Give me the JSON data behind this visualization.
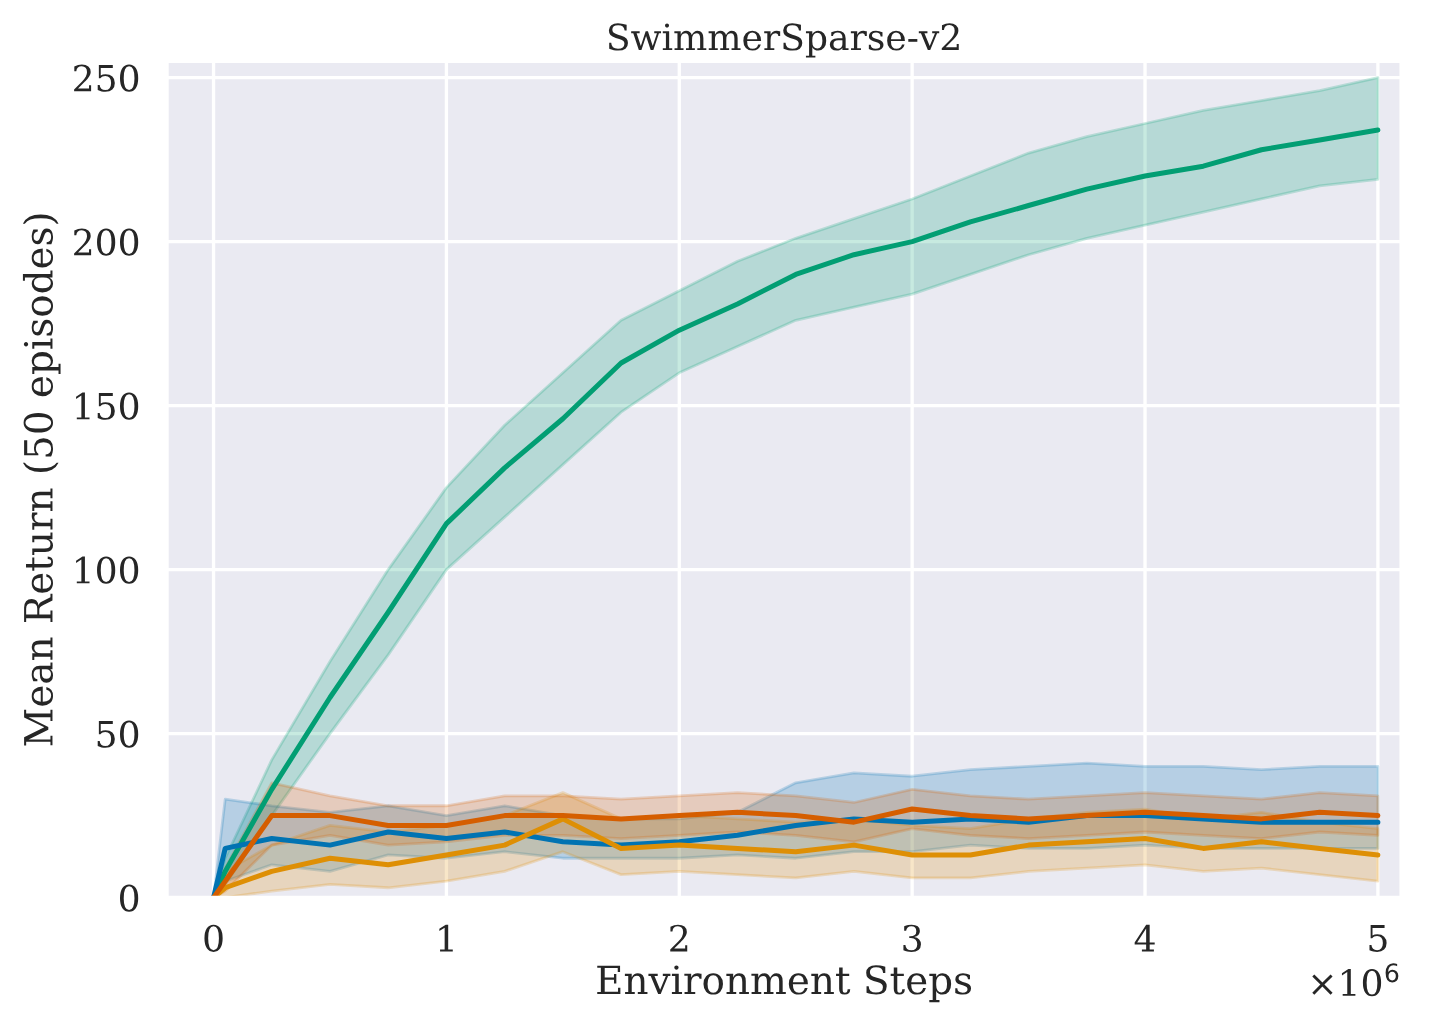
{
  "chart_data": {
    "type": "line",
    "title": "SwimmerSparse-v2",
    "xlabel": "Environment Steps",
    "ylabel": "Mean Return (50 episodes)",
    "annotations": [
      "×10$^{6}$"
    ],
    "x": [
      0,
      0.05,
      0.25,
      0.5,
      0.75,
      1,
      1.25,
      1.5,
      1.75,
      2,
      2.25,
      2.5,
      2.75,
      3,
      3.25,
      3.5,
      3.75,
      4,
      4.25,
      4.5,
      4.75,
      5
    ],
    "series": [
      {
        "color": "#029e73",
        "values": [
          0,
          8,
          33,
          61,
          87,
          114,
          131,
          146,
          163,
          173,
          181,
          190,
          196,
          200,
          206,
          211,
          216,
          220,
          223,
          228,
          231,
          234
        ],
        "lower": [
          0,
          4,
          25,
          50,
          74,
          100,
          116,
          132,
          148,
          160,
          168,
          176,
          180,
          184,
          190,
          196,
          201,
          205,
          209,
          213,
          217,
          219
        ],
        "upper": [
          0,
          12,
          42,
          72,
          100,
          125,
          144,
          160,
          176,
          185,
          194,
          201,
          207,
          213,
          220,
          227,
          232,
          236,
          240,
          243,
          246,
          250
        ]
      },
      {
        "color": "#0173b2",
        "values": [
          0,
          15,
          18,
          16,
          20,
          18,
          20,
          17,
          16,
          17,
          19,
          22,
          24,
          23,
          24,
          23,
          25,
          25,
          24,
          23,
          23,
          23
        ],
        "lower": [
          0,
          5,
          10,
          8,
          13,
          12,
          14,
          12,
          12,
          12,
          13,
          12,
          14,
          14,
          16,
          15,
          15,
          16,
          15,
          15,
          15,
          15
        ],
        "upper": [
          0,
          30,
          28,
          26,
          28,
          25,
          28,
          25,
          24,
          24,
          26,
          35,
          38,
          37,
          39,
          40,
          41,
          40,
          40,
          39,
          40,
          40
        ]
      },
      {
        "color": "#de8f05",
        "values": [
          0,
          3,
          8,
          12,
          10,
          13,
          16,
          24,
          15,
          16,
          15,
          14,
          16,
          13,
          13,
          16,
          17,
          18,
          15,
          17,
          15,
          13
        ],
        "lower": [
          0,
          0,
          2,
          4,
          3,
          5,
          8,
          14,
          7,
          8,
          7,
          6,
          8,
          6,
          6,
          8,
          9,
          10,
          8,
          9,
          7,
          5
        ],
        "upper": [
          0,
          8,
          16,
          22,
          20,
          22,
          25,
          32,
          24,
          25,
          24,
          23,
          24,
          22,
          21,
          24,
          26,
          27,
          24,
          26,
          23,
          21
        ]
      },
      {
        "color": "#d55e00",
        "values": [
          0,
          5,
          25,
          25,
          22,
          22,
          25,
          25,
          24,
          25,
          26,
          25,
          23,
          27,
          25,
          24,
          25,
          26,
          25,
          24,
          26,
          25
        ],
        "lower": [
          0,
          2,
          16,
          19,
          16,
          17,
          19,
          19,
          18,
          19,
          20,
          19,
          17,
          21,
          19,
          18,
          19,
          20,
          19,
          18,
          20,
          19
        ],
        "upper": [
          0,
          9,
          35,
          31,
          28,
          28,
          31,
          31,
          30,
          31,
          32,
          31,
          29,
          33,
          31,
          30,
          31,
          32,
          31,
          30,
          32,
          31
        ]
      }
    ],
    "xlim": [
      -0.2,
      5.1
    ],
    "xticks": [
      0,
      1,
      2,
      3,
      4,
      5
    ],
    "ylim": [
      0,
      255
    ],
    "yticks": [
      0,
      50,
      100,
      150,
      200,
      250
    ],
    "grid": true,
    "legend": false
  }
}
